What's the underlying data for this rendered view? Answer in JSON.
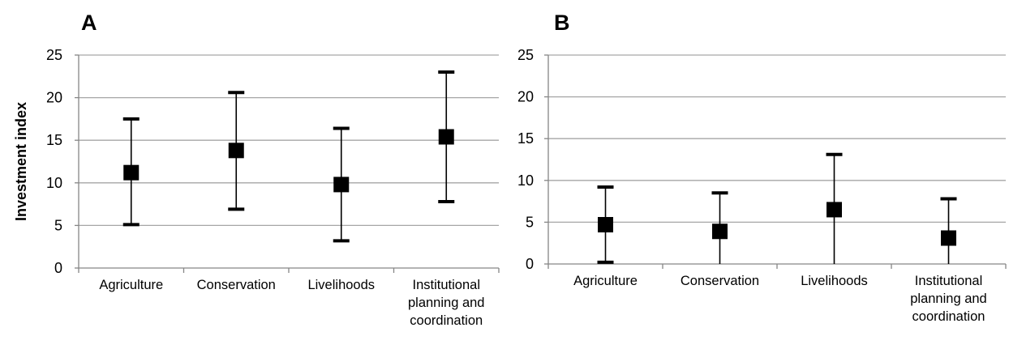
{
  "chart_data": [
    {
      "type": "scatter",
      "panel_label": "A",
      "ylabel": "Investment index",
      "ylim": [
        0,
        25
      ],
      "yticks": [
        0,
        5,
        10,
        15,
        20,
        25
      ],
      "grid": true,
      "categories": [
        [
          "Agriculture"
        ],
        [
          "Conservation"
        ],
        [
          "Livelihoods"
        ],
        [
          "Institutional",
          "planning and",
          "coordination"
        ]
      ],
      "series": [
        {
          "values": [
            11.2,
            13.8,
            9.8,
            15.4
          ],
          "error_low": [
            5.1,
            6.9,
            3.2,
            7.8
          ],
          "error_high": [
            17.5,
            20.6,
            16.4,
            23.0
          ],
          "marker": "square",
          "color": "#000000"
        }
      ]
    },
    {
      "type": "scatter",
      "panel_label": "B",
      "ylabel": "",
      "ylim": [
        0,
        25
      ],
      "yticks": [
        0,
        5,
        10,
        15,
        20,
        25
      ],
      "grid": true,
      "categories": [
        [
          "Agriculture"
        ],
        [
          "Conservation"
        ],
        [
          "Livelihoods"
        ],
        [
          "Institutional",
          "planning and",
          "coordination"
        ]
      ],
      "series": [
        {
          "values": [
            4.7,
            3.9,
            6.5,
            3.1
          ],
          "error_low": [
            0.2,
            0,
            0,
            0
          ],
          "error_high": [
            9.2,
            8.5,
            13.1,
            7.8
          ],
          "marker": "square",
          "color": "#000000"
        }
      ]
    }
  ],
  "colors": {
    "gridline": "#a6a6a6",
    "axis": "#868686",
    "marker": "#000000"
  }
}
